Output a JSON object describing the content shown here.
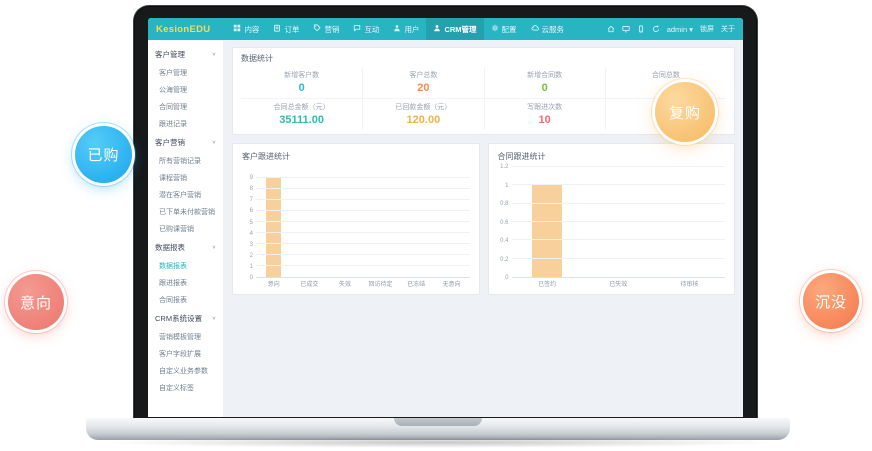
{
  "badges": [
    {
      "id": "purchased",
      "label": "已购",
      "color": "#19a6ee"
    },
    {
      "id": "intent",
      "label": "意向",
      "color": "#ec766c"
    },
    {
      "id": "repurchase",
      "label": "复购",
      "color": "#f6b95f"
    },
    {
      "id": "sunk",
      "label": "沉没",
      "color": "#f5774a"
    }
  ],
  "navbar": {
    "logo": "KesionEDU",
    "brand_color": "#29b4c3",
    "items": [
      {
        "label": "内容",
        "icon": "grid-icon",
        "active": false
      },
      {
        "label": "订单",
        "icon": "clipboard-icon",
        "active": false
      },
      {
        "label": "营销",
        "icon": "tag-icon",
        "active": false
      },
      {
        "label": "互动",
        "icon": "chat-icon",
        "active": false
      },
      {
        "label": "用户",
        "icon": "user-icon",
        "active": false
      },
      {
        "label": "CRM管理",
        "icon": "user-crm-icon",
        "active": true
      },
      {
        "label": "配置",
        "icon": "gear-icon",
        "active": false
      },
      {
        "label": "云服务",
        "icon": "cloud-icon",
        "active": false
      }
    ],
    "right_icons": [
      "home-icon",
      "monitor-icon",
      "phone-icon",
      "refresh-icon"
    ],
    "user": "admin",
    "user_caret": "▾",
    "links": [
      "锁屏",
      "关于"
    ]
  },
  "sidebar": {
    "chevron": "∨",
    "groups": [
      {
        "label": "客户管理",
        "items": [
          "客户管理",
          "公海管理",
          "合同管理",
          "跟进记录"
        ]
      },
      {
        "label": "客户营销",
        "items": [
          "所有营销记录",
          "课程营销",
          "潜在客户营销",
          "已下单未付款营销",
          "已购课营销"
        ]
      },
      {
        "label": "数据报表",
        "items": [
          "数据报表",
          "跟进报表",
          "合同报表"
        ],
        "active_item": "数据报表"
      },
      {
        "label": "CRM系统设置",
        "items": [
          "营销模板管理",
          "客户字段扩展",
          "自定义业务参数",
          "自定义标签"
        ]
      }
    ]
  },
  "stats": {
    "title": "数据统计",
    "cells": [
      {
        "label": "新增客户数",
        "value": "0",
        "color": "#2bbcc9"
      },
      {
        "label": "客户总数",
        "value": "20",
        "color": "#fa8b50"
      },
      {
        "label": "新增合同数",
        "value": "0",
        "color": "#6fc243"
      },
      {
        "label": "合同总数",
        "value": "",
        "color": "#6fc243"
      },
      {
        "label": "合同总金额（元）",
        "value": "35111.00",
        "color": "#2dbfa8"
      },
      {
        "label": "已回款金额（元）",
        "value": "120.00",
        "color": "#f5b04e"
      },
      {
        "label": "写跟进次数",
        "value": "10",
        "color": "#f56c6c"
      },
      {
        "label": "",
        "value": "",
        "color": ""
      }
    ]
  },
  "chart_data": [
    {
      "type": "bar",
      "title": "客户跟进统计",
      "categories": [
        "意向",
        "已成交",
        "失效",
        "回访待定",
        "已冻结",
        "无意向"
      ],
      "values": [
        9,
        0,
        0,
        0,
        0,
        0
      ],
      "yticks": [
        0,
        1,
        2,
        3,
        4,
        5,
        6,
        7,
        8,
        9
      ],
      "ylim": [
        0,
        10
      ],
      "xlabel": "",
      "ylabel": "",
      "grid": true,
      "legend": false,
      "bar_color": "#f7d09b"
    },
    {
      "type": "bar",
      "title": "合同跟进统计",
      "categories": [
        "已签约",
        "已失效",
        "待审核"
      ],
      "values": [
        1,
        0,
        0
      ],
      "yticks": [
        0,
        0.2,
        0.4,
        0.6,
        0.8,
        1,
        1.2
      ],
      "ylim": [
        0,
        1.2
      ],
      "xlabel": "",
      "ylabel": "",
      "grid": true,
      "legend": false,
      "bar_color": "#f7d09b"
    }
  ]
}
